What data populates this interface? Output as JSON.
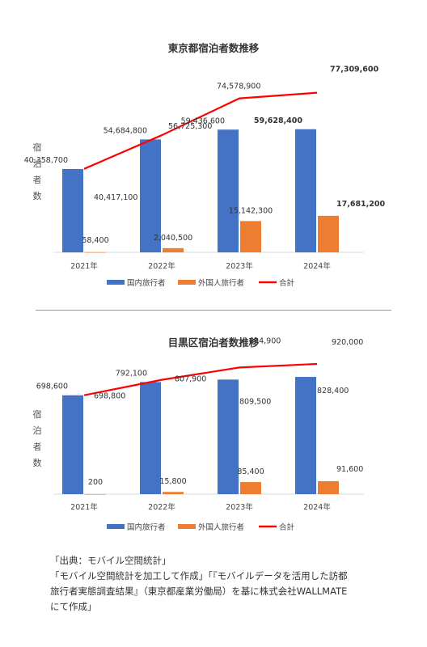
{
  "charts": [
    {
      "type": "bar",
      "title": "東京都宿泊者数推移",
      "ylabel": "宿泊者数",
      "categories": [
        "2021年",
        "2022年",
        "2023年",
        "2024年"
      ],
      "series": [
        {
          "name": "国内旅行者",
          "type": "bar",
          "color": "#4472c4",
          "values": [
            40358700,
            54684800,
            59436600,
            59628400
          ]
        },
        {
          "name": "外国人旅行者",
          "type": "bar",
          "color": "#ed7d31",
          "values": [
            58400,
            2040500,
            15142300,
            17681200
          ]
        },
        {
          "name": "合計",
          "type": "line",
          "color": "#ff0000",
          "values": [
            40417100,
            56725300,
            74578900,
            77309600
          ]
        }
      ],
      "labels": {
        "domestic": [
          "40,358,700",
          "54,684,800",
          "59,436,600",
          "59,628,400"
        ],
        "foreign": [
          "58,400",
          "2,040,500",
          "15,142,300",
          "17,681,200"
        ],
        "total": [
          "40,417,100",
          "56,725,300",
          "74,578,900",
          "77,309,600"
        ]
      },
      "ylim": [
        0,
        85000000
      ]
    },
    {
      "type": "bar",
      "title": "目黒区宿泊者数推移",
      "ylabel": "宿泊者数",
      "categories": [
        "2021年",
        "2022年",
        "2023年",
        "2024年"
      ],
      "series": [
        {
          "name": "国内旅行者",
          "type": "bar",
          "color": "#4472c4",
          "values": [
            698600,
            792100,
            809500,
            828400
          ]
        },
        {
          "name": "外国人旅行者",
          "type": "bar",
          "color": "#ed7d31",
          "values": [
            200,
            15800,
            85400,
            91600
          ]
        },
        {
          "name": "合計",
          "type": "line",
          "color": "#ff0000",
          "values": [
            698800,
            807900,
            894900,
            920000
          ]
        }
      ],
      "labels": {
        "domestic": [
          "698,600",
          "792,100",
          "809,500",
          "828,400"
        ],
        "foreign": [
          "200",
          "15,800",
          "85,400",
          "91,600"
        ],
        "total": [
          "698,800",
          "807,900",
          "894,900",
          "920,000"
        ]
      },
      "ylim": [
        0,
        1000000
      ]
    }
  ],
  "footer": {
    "line1": "「出典：モバイル空間統計」",
    "line2": "「モバイル空間統計を加工して作成」「『モバイルデータを活用した訪都",
    "line3": "旅行者実態調査結果』（東京都産業労働局）を基に株式会社WALLMATE",
    "line4": "にて作成」"
  }
}
